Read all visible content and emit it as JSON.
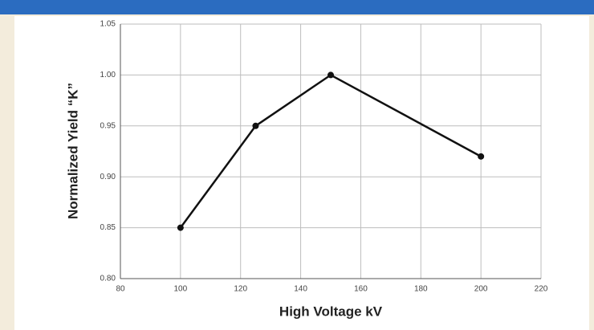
{
  "chart_data": {
    "type": "line",
    "x": [
      100,
      125,
      150,
      200
    ],
    "series": [
      {
        "name": null,
        "color": "#111111",
        "values": [
          0.85,
          0.95,
          1.0,
          0.92
        ]
      }
    ],
    "xlabel": "High Voltage kV",
    "ylabel": "Normalized Yield “K”",
    "xlim": [
      80,
      220
    ],
    "xticks": [
      80,
      100,
      120,
      140,
      160,
      180,
      200,
      220
    ],
    "ylim": [
      0.8,
      1.05
    ],
    "yticks": [
      {
        "value": 0.8,
        "label": "0.80"
      },
      0.85,
      {
        "value": 0.9,
        "label": "0.90"
      },
      0.95,
      {
        "value": 1.0,
        "label": "1.00"
      },
      1.05
    ],
    "grid": true
  }
}
